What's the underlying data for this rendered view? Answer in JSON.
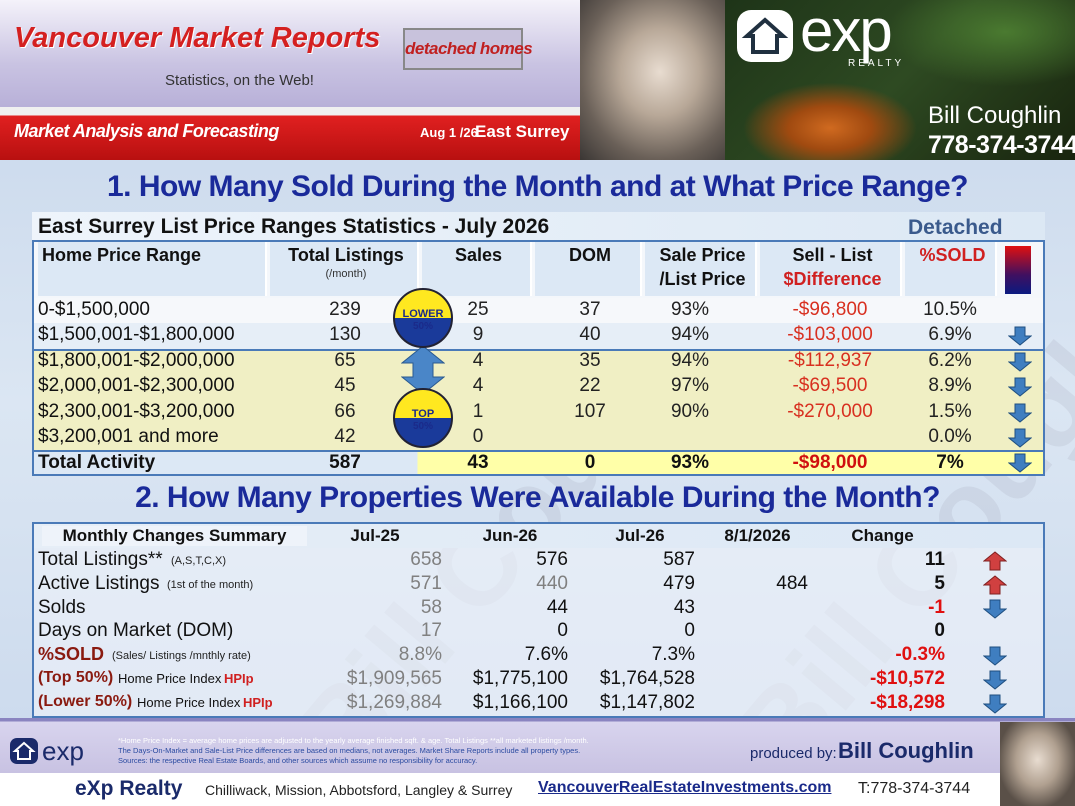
{
  "header": {
    "title": "Vancouver Market Reports",
    "subtitle": "Statistics, on the Web!",
    "badge": "detached homes",
    "tagline": "Market Analysis and Forecasting",
    "date": "Aug 1 /26",
    "area": "East Surrey",
    "logo": "exp",
    "logo_sub": "REALTY",
    "agent": "Bill Coughlin",
    "phone": "778-374-3744"
  },
  "section1": {
    "heading": "1. How Many Sold During the Month and at What Price Range?",
    "table": {
      "title": "East Surrey List Price Ranges Statistics - July  2026",
      "tag": "Detached",
      "columns": [
        {
          "lines": [
            "Home Price Range"
          ]
        },
        {
          "lines": [
            "Total  Listings"
          ],
          "note": "(/month)"
        },
        {
          "lines": [
            "Sales"
          ]
        },
        {
          "lines": [
            "DOM"
          ]
        },
        {
          "lines": [
            "Sale Price",
            "/List Price"
          ]
        },
        {
          "lines": [
            "Sell - List",
            "$Difference"
          ]
        },
        {
          "lines": [
            "%SOLD"
          ]
        }
      ],
      "rows": [
        [
          "0-$1,500,000",
          "239",
          "25",
          "37",
          "93%",
          "-$96,800",
          "10.5%"
        ],
        [
          "$1,500,001-$1,800,000",
          "130",
          "9",
          "40",
          "94%",
          "-$103,000",
          "6.9%"
        ],
        [
          "$1,800,001-$2,000,000",
          "65",
          "4",
          "35",
          "94%",
          "-$112,937",
          "6.2%"
        ],
        [
          "$2,000,001-$2,300,000",
          "45",
          "4",
          "22",
          "97%",
          "-$69,500",
          "8.9%"
        ],
        [
          "$2,300,001-$3,200,000",
          "66",
          "1",
          "107",
          "90%",
          "-$270,000",
          "1.5%"
        ],
        [
          "$3,200,001 and more",
          "42",
          "0",
          null,
          null,
          null,
          "0.0%"
        ]
      ],
      "total": [
        "Total Activity",
        "587",
        "43",
        "0",
        "93%",
        "-$98,000",
        "7%"
      ],
      "badges": [
        {
          "lines": [
            "LOWER",
            "50%"
          ]
        },
        {
          "lines": [
            "TOP",
            "50%"
          ]
        }
      ]
    }
  },
  "section2": {
    "heading": "2. How Many Properties Were Available During the Month?",
    "table": {
      "columns": [
        "Monthly Changes Summary",
        "Jul-25",
        "Jun-26",
        "Jul-26",
        "8/1/2026",
        "Change"
      ],
      "rows": [
        {
          "label": "Total Listings**",
          "note": "(A,S,T,C,X)",
          "cells": [
            "658",
            "576",
            "587",
            null,
            "11"
          ]
        },
        {
          "label": "Active Listings",
          "note": "(1st of the month)",
          "cells": [
            "571",
            "440",
            "479",
            "484",
            "5"
          ]
        },
        {
          "label": "Solds",
          "cells": [
            "58",
            "44",
            "43",
            null,
            "-1"
          ]
        },
        {
          "label": "Days on Market (DOM)",
          "cells": [
            "17",
            "0",
            "0",
            null,
            "0"
          ]
        },
        {
          "label": "%SOLD",
          "note": "(Sales/ Listings /mnthly rate)",
          "cells": [
            "8.8%",
            "7.6%",
            "7.3%",
            null,
            "-0.3%"
          ]
        },
        {
          "prefix": "(Top 50%)",
          "label": "Home Price Index",
          "suffix": "HPIp",
          "cells": [
            "$1,909,565",
            "$1,775,100",
            "$1,764,528",
            null,
            "-$10,572"
          ]
        },
        {
          "prefix": "(Lower 50%)",
          "label": "Home Price Index",
          "suffix": "HPIp",
          "cells": [
            "$1,269,884",
            "$1,166,100",
            "$1,147,802",
            null,
            "-$18,298"
          ]
        }
      ]
    }
  },
  "watermark": "Bill Coughlin",
  "footer": {
    "notes": [
      "*Home Price Index = average home prices are adjusted to the yearly average finished sqft. & age.  Total Listings **all marketed listings /month.",
      "The Days-On-Market and Sale-List Price differences are based on medians, not averages. Market Share Reports include all property types.",
      "Sources:  the respective Real Estate Boards, and other sources which assume no responsibility for accuracy."
    ],
    "produced_label": "produced by:",
    "producer": "Bill Coughlin",
    "brand": "eXp Realty",
    "regions": "Chilliwack, Mission, Abbotsford, Langley & Surrey",
    "website": "VancouverRealEstateInvestments.com",
    "phone": "T:778-374-3744"
  }
}
